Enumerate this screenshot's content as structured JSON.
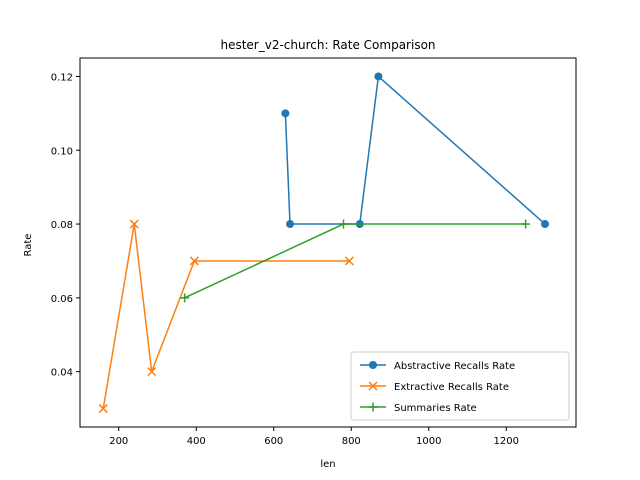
{
  "chart_data": {
    "type": "line",
    "title": "hester_v2-church: Rate Comparison",
    "xlabel": "len",
    "ylabel": "Rate",
    "xlim": [
      100,
      1380
    ],
    "ylim": [
      0.025,
      0.125
    ],
    "xticks": [
      200,
      400,
      600,
      800,
      1000,
      1200
    ],
    "yticks": [
      0.04,
      0.06,
      0.08,
      0.1,
      0.12
    ],
    "ytick_labels": [
      "0.04",
      "0.06",
      "0.08",
      "0.10",
      "0.12"
    ],
    "grid": false,
    "legend_position": "lower-right",
    "series": [
      {
        "name": "Abstractive Recalls Rate",
        "color": "#1f77b4",
        "marker": "circle",
        "x": [
          630,
          642,
          822,
          870,
          1300
        ],
        "y": [
          0.11,
          0.08,
          0.08,
          0.12,
          0.08
        ]
      },
      {
        "name": "Extractive Recalls Rate",
        "color": "#ff7f0e",
        "marker": "x",
        "x": [
          160,
          240,
          285,
          395,
          795
        ],
        "y": [
          0.03,
          0.08,
          0.04,
          0.07,
          0.07
        ]
      },
      {
        "name": "Summaries Rate",
        "color": "#2ca02c",
        "marker": "plus",
        "x": [
          370,
          780,
          1250
        ],
        "y": [
          0.06,
          0.08,
          0.08
        ]
      }
    ]
  }
}
